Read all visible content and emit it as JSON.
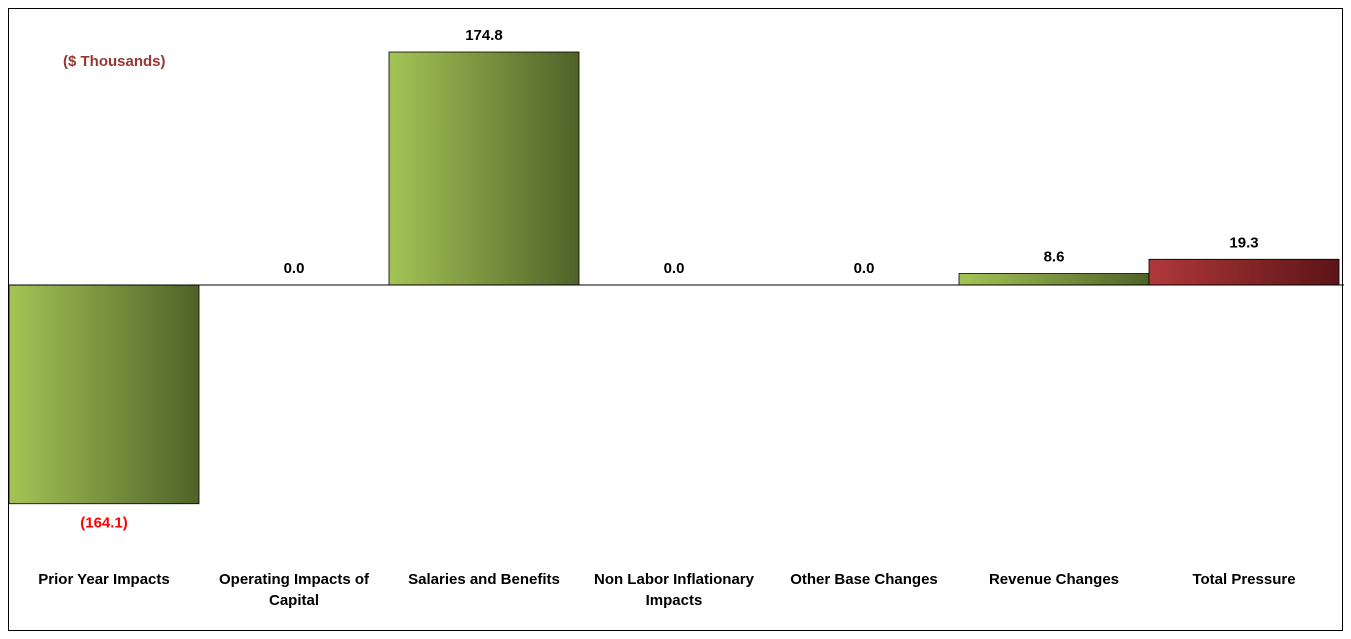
{
  "unit_label": "($ Thousands)",
  "chart_data": {
    "type": "bar",
    "title": "",
    "xlabel": "",
    "ylabel": "",
    "categories": [
      "Prior Year Impacts",
      "Operating Impacts of Capital",
      "Salaries and Benefits",
      "Non Labor Inflationary Impacts",
      "Other Base Changes",
      "Revenue Changes",
      "Total Pressure"
    ],
    "values": [
      -164.1,
      0.0,
      174.8,
      0.0,
      0.0,
      8.6,
      19.3
    ],
    "value_labels": [
      "(164.1)",
      "0.0",
      "174.8",
      "0.0",
      "0.0",
      "8.6",
      "19.3"
    ],
    "ylim": [
      -164.1,
      174.8
    ],
    "grid": false,
    "legend": "none",
    "colors": {
      "bar_green_light": "#a4c456",
      "bar_green_dark": "#4f6228",
      "bar_red_light": "#b0383a",
      "bar_red_dark": "#5c1416",
      "negative_label": "#ff0000",
      "positive_label": "#000000",
      "unit_label": "#953735"
    }
  }
}
